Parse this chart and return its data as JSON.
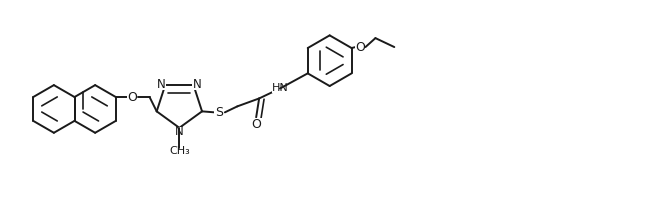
{
  "bg_color": "#ffffff",
  "line_color": "#1a1a1a",
  "line_width": 1.4,
  "font_size": 8.5,
  "figsize": [
    6.53,
    2.04
  ],
  "dpi": 100,
  "xlim": [
    0,
    6.53
  ],
  "ylim": [
    0,
    2.04
  ]
}
